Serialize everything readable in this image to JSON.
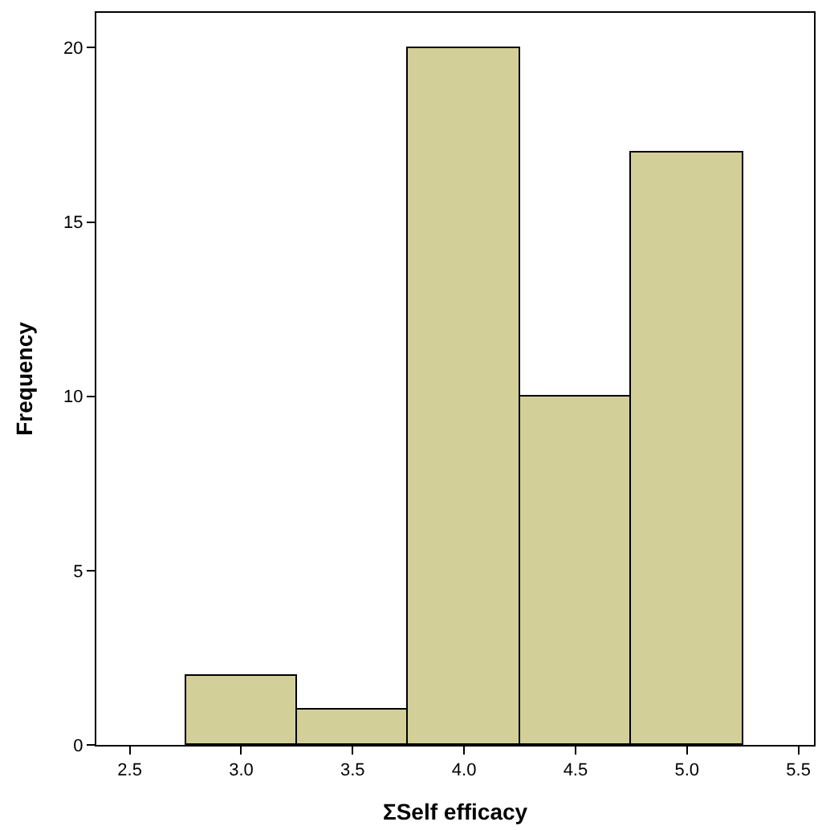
{
  "chart_data": {
    "type": "histogram",
    "xlabel": "ΣSelf efficacy",
    "ylabel": "Frequency",
    "bins": [
      2.75,
      3.25,
      3.75,
      4.25,
      4.75,
      5.25
    ],
    "values": [
      2,
      1,
      20,
      10,
      17
    ],
    "color": "#d3cf98",
    "xlim": [
      2.35,
      5.57
    ],
    "xticks": [
      {
        "value": 2.5,
        "label": "2.5"
      },
      {
        "value": 3.0,
        "label": "3.0"
      },
      {
        "value": 3.5,
        "label": "3.5"
      },
      {
        "value": 4.0,
        "label": "4.0"
      },
      {
        "value": 4.5,
        "label": "4.5"
      },
      {
        "value": 5.0,
        "label": "5.0"
      },
      {
        "value": 5.5,
        "label": "5.5"
      }
    ],
    "ylim": [
      0,
      21
    ],
    "yticks": [
      0,
      5,
      10,
      15,
      20
    ]
  }
}
